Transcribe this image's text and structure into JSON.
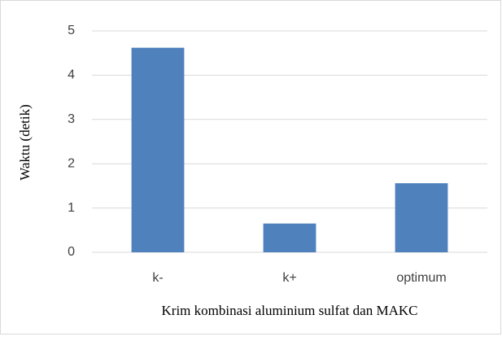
{
  "chart_data": {
    "type": "bar",
    "x_label": "Krim kombinasi aluminium sulfat dan MAKC",
    "y_label": "Waktu (detik)",
    "categories": [
      "k-",
      "k+",
      "optimum"
    ],
    "values": [
      4.62,
      0.65,
      1.56
    ],
    "color": "#4f81bd",
    "ylim": [
      0,
      5
    ],
    "yticks": [
      0,
      1,
      2,
      3,
      4,
      5
    ],
    "grid": true
  }
}
